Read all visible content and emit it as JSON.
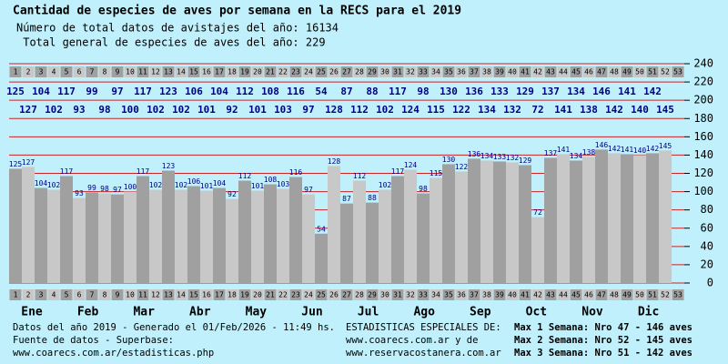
{
  "chart_data": {
    "type": "bar",
    "title": "Cantidad de especies de aves por semana en la RECS para el 2019",
    "subtitle": [
      "Número de total datos de avistajes del año: 16134",
      " Total general de especies de aves del año: 229"
    ],
    "categories": [
      1,
      2,
      3,
      4,
      5,
      6,
      7,
      8,
      9,
      10,
      11,
      12,
      13,
      14,
      15,
      16,
      17,
      18,
      19,
      20,
      21,
      22,
      23,
      24,
      25,
      26,
      27,
      28,
      29,
      30,
      31,
      32,
      33,
      34,
      35,
      36,
      37,
      38,
      39,
      40,
      41,
      42,
      43,
      44,
      45,
      46,
      47,
      48,
      49,
      50,
      51,
      52,
      53
    ],
    "values": [
      125,
      127,
      104,
      102,
      117,
      93,
      99,
      98,
      97,
      100,
      117,
      102,
      123,
      102,
      106,
      101,
      104,
      92,
      112,
      101,
      108,
      103,
      116,
      97,
      54,
      128,
      87,
      112,
      88,
      102,
      117,
      124,
      98,
      115,
      130,
      122,
      136,
      134,
      133,
      132,
      129,
      72,
      137,
      141,
      134,
      138,
      146,
      142,
      141,
      140,
      142,
      145,
      null
    ],
    "colors": [
      "#a0a0a0",
      "#c8c8c8"
    ],
    "label_color": "#000080",
    "ylim": [
      0,
      240
    ],
    "yticks": [
      0,
      20,
      40,
      60,
      80,
      100,
      120,
      140,
      160,
      180,
      200,
      220,
      240
    ],
    "grid": true,
    "grid_color": "#cc2222",
    "months": [
      "Ene",
      "Feb",
      "Mar",
      "Abr",
      "May",
      "Jun",
      "Jul",
      "Ago",
      "Sep",
      "Oct",
      "Nov",
      "Dic"
    ]
  },
  "footer": {
    "left": [
      "Datos del año 2019 - Generado el 01/Feb/2026 - 11:49 hs.",
      "Fuente de datos - Superbase:",
      "www.coarecs.com.ar/estadisticas.php"
    ],
    "center": [
      "ESTADISTICAS ESPECIALES DE:",
      "www.coarecs.com.ar y de",
      "www.reservacostanera.com.ar"
    ],
    "right": [
      "Max 1 Semana: Nro 47 - 146 aves",
      "Max 2 Semana: Nro 52 - 145 aves",
      "Max 3 Semana: Nro 51 - 142 aves"
    ]
  }
}
